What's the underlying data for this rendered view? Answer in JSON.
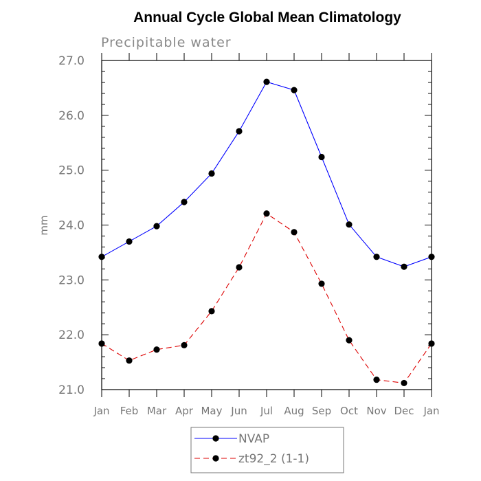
{
  "chart_data": {
    "type": "line",
    "title": "Annual Cycle Global Mean Climatology",
    "subtitle": "Precipitable water",
    "ylabel": "mm",
    "xlabel": "",
    "categories": [
      "Jan",
      "Feb",
      "Mar",
      "Apr",
      "May",
      "Jun",
      "Jul",
      "Aug",
      "Sep",
      "Oct",
      "Nov",
      "Dec",
      "Jan"
    ],
    "ylim": [
      21.0,
      27.0
    ],
    "yticks": [
      "21.0",
      "22.0",
      "23.0",
      "24.0",
      "25.0",
      "26.0",
      "27.0"
    ],
    "grid": false,
    "legend_position": "bottom",
    "series": [
      {
        "name": "NVAP",
        "color": "#0000ff",
        "line_style": "solid",
        "marker": "filled-circle",
        "values": [
          23.42,
          23.7,
          23.98,
          24.42,
          24.94,
          25.71,
          26.61,
          26.46,
          25.24,
          24.01,
          23.42,
          23.24,
          23.42
        ]
      },
      {
        "name": "zt92_2 (1-1)",
        "color": "#dd0000",
        "line_style": "dashed",
        "marker": "filled-circle",
        "values": [
          21.84,
          21.53,
          21.73,
          21.81,
          22.43,
          23.23,
          24.21,
          23.87,
          22.93,
          21.9,
          21.18,
          21.12,
          21.84
        ]
      }
    ]
  }
}
